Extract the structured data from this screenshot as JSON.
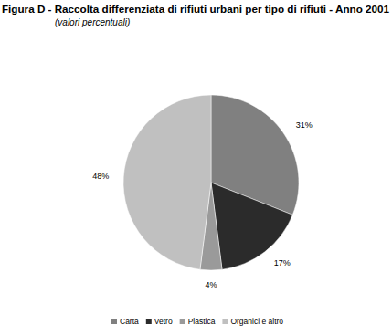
{
  "chart_data": {
    "type": "pie",
    "title": "Figura D - Raccolta differenziata di rifiuti urbani per tipo di rifiuti - Anno 2001",
    "subtitle": "(valori percentuali)",
    "categories": [
      "Carta",
      "Vetro",
      "Plastica",
      "Organici e altro"
    ],
    "values": [
      31,
      17,
      4,
      48
    ],
    "value_labels": [
      "31%",
      "17%",
      "4%",
      "48%"
    ],
    "colors": [
      "#808080",
      "#2b2b2b",
      "#9a9a9a",
      "#c0c0c0"
    ],
    "data_labels": true,
    "legend": "bottom"
  }
}
